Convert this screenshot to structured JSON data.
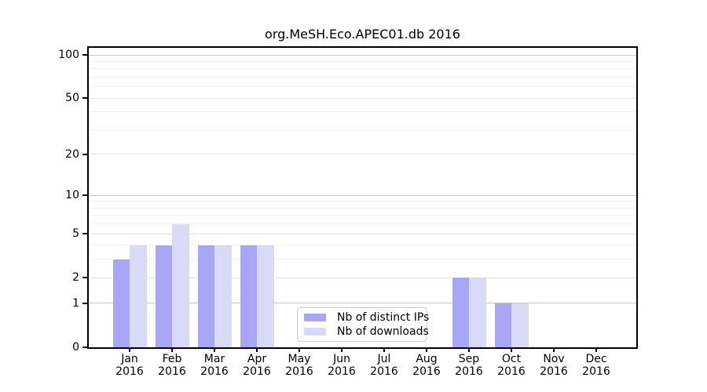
{
  "figure": {
    "background": "#ffffff"
  },
  "chart_data": {
    "type": "bar",
    "title": "org.MeSH.Eco.APEC01.db 2016",
    "categories": [
      "Jan",
      "Feb",
      "Mar",
      "Apr",
      "May",
      "Jun",
      "Jul",
      "Aug",
      "Sep",
      "Oct",
      "Nov",
      "Dec"
    ],
    "category_year": "2016",
    "series": [
      {
        "name": "Nb of distinct IPs",
        "color": "#a7a7f5",
        "values": [
          3,
          4,
          4,
          4,
          0,
          0,
          0,
          0,
          2,
          1,
          0,
          0
        ]
      },
      {
        "name": "Nb of downloads",
        "color": "#d9d9f8",
        "values": [
          4,
          6,
          4,
          4,
          0,
          0,
          0,
          0,
          2,
          1,
          0,
          0
        ]
      }
    ],
    "yscale": "log1p",
    "ylim": [
      0,
      112
    ],
    "yticks": [
      0,
      1,
      2,
      5,
      10,
      20,
      50,
      100
    ],
    "grid": {
      "on": true,
      "decade_lines": [
        1,
        10,
        100
      ],
      "major_lines": [
        2,
        5,
        20,
        50
      ],
      "minor_lines": [
        3,
        4,
        6,
        7,
        8,
        9,
        30,
        40,
        60,
        70,
        80,
        90
      ]
    },
    "legend_position": "lower center",
    "xlabel": "",
    "ylabel": ""
  },
  "legend": {
    "items": [
      {
        "label": "Nb of distinct IPs",
        "color": "#a7a7f5"
      },
      {
        "label": "Nb of downloads",
        "color": "#d9d9f8"
      }
    ]
  },
  "colors": {
    "axis": "#000000",
    "grid_decade": "#c6c6c6",
    "grid_major": "#e3e3e3",
    "grid_minor": "#f2f2f2",
    "legend_border": "#cccccc",
    "bar_ips": "#a7a7f5",
    "bar_downloads": "#d9d9f8"
  }
}
